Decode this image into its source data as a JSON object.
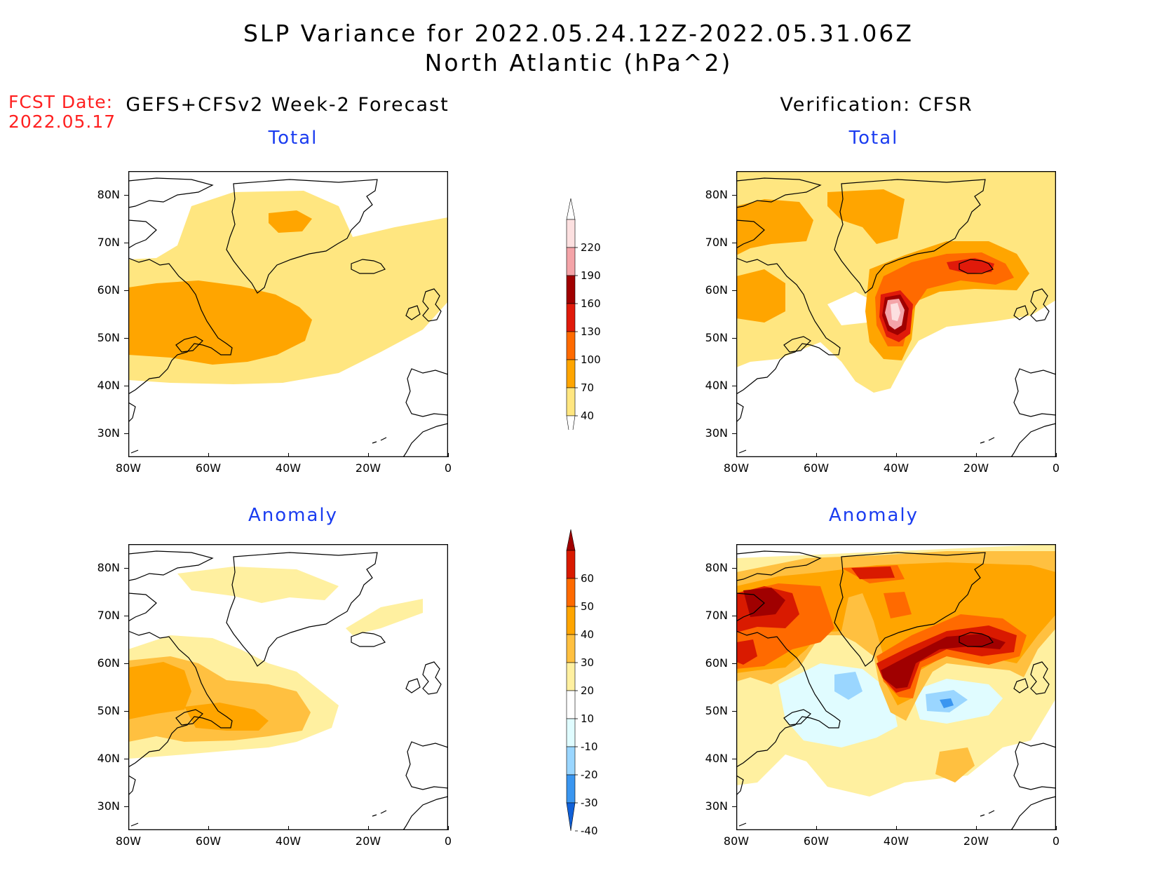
{
  "title_line1": "SLP Variance for 2022.05.24.12Z-2022.05.31.06Z",
  "title_line2": "North Atlantic (hPa^2)",
  "fcst_date_label": "FCST Date:",
  "fcst_date_value": "2022.05.17",
  "left_column_title": "GEFS+CFSv2 Week-2 Forecast",
  "right_column_title": "Verification: CFSR",
  "panels": {
    "top_left_title": "Total",
    "top_right_title": "Total",
    "bottom_left_title": "Anomaly",
    "bottom_right_title": "Anomaly"
  },
  "map_axes": {
    "lon_labels": [
      "80W",
      "60W",
      "40W",
      "20W",
      "0"
    ],
    "lat_labels": [
      "80N",
      "70N",
      "60N",
      "50N",
      "40N",
      "30N"
    ],
    "lon_range": [
      -80,
      0
    ],
    "lat_range": [
      25,
      85
    ]
  },
  "colorbar_total": {
    "levels": [
      "220",
      "190",
      "160",
      "130",
      "100",
      "70",
      "40"
    ],
    "colors": [
      "#ffffff",
      "#fce0e0",
      "#f4a4a8",
      "#a00000",
      "#e01a0a",
      "#ff6a00",
      "#ffa500",
      "#ffe680",
      "#ffffff"
    ]
  },
  "colorbar_anomaly": {
    "levels": [
      "60",
      "50",
      "40",
      "30",
      "20",
      "10",
      "-10",
      "-20",
      "-30",
      "-40"
    ],
    "colors": [
      "#a00000",
      "#d91a00",
      "#ff6a00",
      "#ffa500",
      "#ffc040",
      "#fff0a0",
      "#ffffff",
      "#e0fcff",
      "#9ad6ff",
      "#3a96f0",
      "#1060d8"
    ]
  }
}
